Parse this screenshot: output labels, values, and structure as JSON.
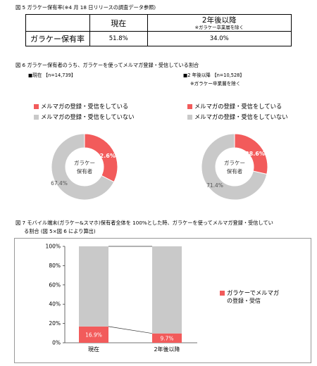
{
  "fig5": {
    "caption": "図 5  ガラケー保有率(※4 月 18 日リリースの調査データ参照)",
    "col_now": "現在",
    "col_after": "2年後以降",
    "col_after_note": "※ガラケー卒業層を除く",
    "row_label": "ガラケー保有率",
    "val_now": "51.8%",
    "val_after": "34.0%"
  },
  "fig6": {
    "caption": "図 6  ガラケー保有者のうち、ガラケーを使ってメルマガ登録・受信している割合",
    "left_title": "■現在 【n=14,739】",
    "right_title": "■2 年後以降 【n=10,528】",
    "right_note": "※ガラケー卒業層を除く",
    "legend_yes": "メルマガの登録・受信をしている",
    "legend_no": "メルマガの登録・受信をしていない",
    "center_label_1": "ガラケー",
    "center_label_2": "保有者"
  },
  "fig7": {
    "caption_1": "図 7  モバイル端末(ガラケー&スマホ)保有者全体を 100%とした時、ガラケーを使ってメルマガ登録・受信してい",
    "caption_2": "る割合 (図 5×図 6 により算出)",
    "legend_1": "ガラケーでメルマガ",
    "legend_2": "の登録・受信"
  },
  "chart_data": [
    {
      "type": "pie",
      "title": "■現在 【n=14,739】",
      "labels": [
        "メルマガの登録・受信をしている",
        "メルマガの登録・受信をしていない"
      ],
      "values": [
        32.6,
        67.4
      ],
      "value_labels": [
        "32.6%",
        "67.4%"
      ],
      "colors": [
        "#f25b5b",
        "#c9c9c9"
      ]
    },
    {
      "type": "pie",
      "title": "■2 年後以降 【n=10,528】",
      "labels": [
        "メルマガの登録・受信をしている",
        "メルマガの登録・受信をしていない"
      ],
      "values": [
        28.6,
        71.4
      ],
      "value_labels": [
        "28.6%",
        "71.4%"
      ],
      "colors": [
        "#f25b5b",
        "#c9c9c9"
      ]
    },
    {
      "type": "bar",
      "stacked": true,
      "categories": [
        "現在",
        "2年後以降"
      ],
      "series": [
        {
          "name": "ガラケーでメルマガの登録・受信",
          "values": [
            16.9,
            9.7
          ],
          "labels": [
            "16.9%",
            "9.7%"
          ],
          "color": "#f25b5b"
        },
        {
          "values": [
            83.1,
            90.3
          ],
          "color": "#c9c9c9"
        }
      ],
      "ylim": [
        0,
        100
      ],
      "yticks": [
        "0%",
        "20%",
        "40%",
        "60%",
        "80%",
        "100%"
      ],
      "yvalues": [
        0,
        20,
        40,
        60,
        80,
        100
      ]
    }
  ]
}
